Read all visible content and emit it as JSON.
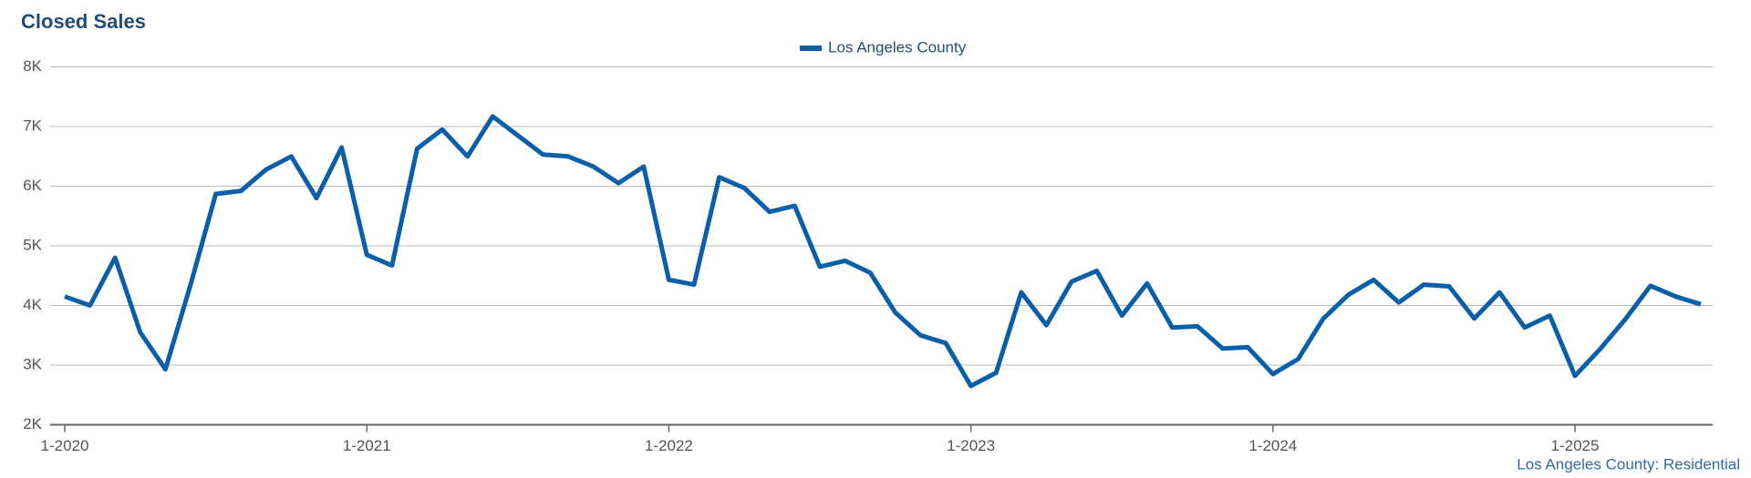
{
  "chart_data": {
    "type": "line",
    "title": "Closed Sales",
    "footnote": "Los Angeles County: Residential",
    "categories": [
      "1-2020",
      null,
      null,
      null,
      null,
      null,
      null,
      null,
      null,
      null,
      null,
      null,
      "1-2021",
      null,
      null,
      null,
      null,
      null,
      null,
      null,
      null,
      null,
      null,
      null,
      "1-2022",
      null,
      null,
      null,
      null,
      null,
      null,
      null,
      null,
      null,
      null,
      null,
      "1-2023",
      null,
      null,
      null,
      null,
      null,
      null,
      null,
      null,
      null,
      null,
      null,
      "1-2024",
      null,
      null,
      null,
      null,
      null,
      null,
      null,
      null,
      null,
      null,
      null,
      "1-2025",
      null,
      null,
      null,
      null,
      null
    ],
    "series": [
      {
        "name": "Los Angeles County",
        "color": "#0b5ea8",
        "values": [
          4150,
          4000,
          4800,
          3550,
          2930,
          4350,
          5870,
          5920,
          6280,
          6500,
          5800,
          6650,
          4850,
          4670,
          6630,
          6950,
          6500,
          7170,
          6850,
          6530,
          6500,
          6330,
          6050,
          6330,
          4430,
          4350,
          6150,
          5970,
          5570,
          5670,
          4650,
          4750,
          4550,
          3880,
          3500,
          3370,
          2650,
          2870,
          4220,
          3670,
          4400,
          4580,
          3830,
          4370,
          3630,
          3650,
          3280,
          3300,
          2850,
          3100,
          3780,
          4180,
          4430,
          4050,
          4350,
          4320,
          3780,
          4220,
          3630,
          3830,
          2820,
          3270,
          3770,
          4330,
          4150,
          4020
        ]
      }
    ],
    "ylim": [
      2000,
      8000
    ],
    "yticks": [
      {
        "value": 2000,
        "label": "2K"
      },
      {
        "value": 3000,
        "label": "3K"
      },
      {
        "value": 4000,
        "label": "4K"
      },
      {
        "value": 5000,
        "label": "5K"
      },
      {
        "value": 6000,
        "label": "6K"
      },
      {
        "value": 7000,
        "label": "7K"
      },
      {
        "value": 8000,
        "label": "8K"
      }
    ],
    "grid": true,
    "legend": "top"
  }
}
